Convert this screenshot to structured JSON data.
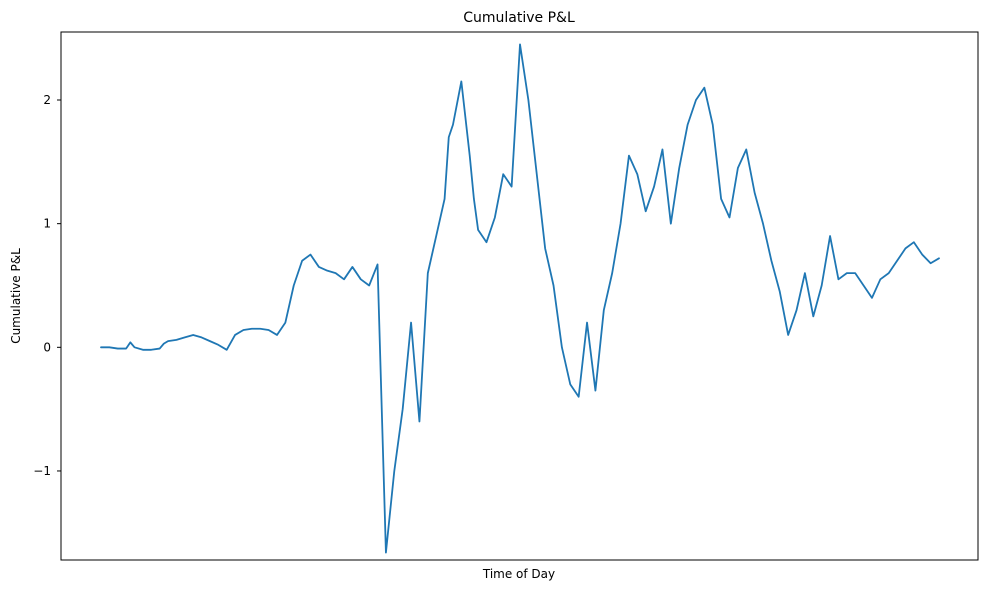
{
  "chart_data": {
    "type": "line",
    "title": "Cumulative P&L",
    "xlabel": "Time of Day",
    "ylabel": "Cumulative P&L",
    "xlim": [
      0,
      100
    ],
    "ylim": [
      -1.72,
      2.55
    ],
    "yticks": [
      -1,
      0,
      1,
      2
    ],
    "ytick_labels": [
      "−1",
      "0",
      "1",
      "2"
    ],
    "grid": false,
    "line_color": "#1f77b4",
    "series": [
      {
        "x": [
          0,
          1,
          2,
          3,
          3.5,
          4,
          5,
          6,
          7,
          7.5,
          8,
          9,
          10,
          11,
          12,
          13,
          14,
          15,
          16,
          17,
          18,
          19,
          20,
          21,
          22,
          23,
          24,
          25,
          26,
          27,
          28,
          29,
          30,
          31,
          32,
          33,
          34,
          35,
          36,
          37,
          38,
          39,
          40,
          41,
          41.5,
          42,
          43,
          44,
          44.5,
          45,
          46,
          47,
          48,
          49,
          50,
          51,
          52,
          53,
          54,
          55,
          56,
          57,
          58,
          59,
          60,
          61,
          62,
          63,
          64,
          65,
          66,
          67,
          68,
          69,
          70,
          71,
          72,
          73,
          74,
          75,
          76,
          77,
          78,
          79,
          80,
          81,
          82,
          83,
          84,
          85,
          86,
          87,
          88,
          89,
          90,
          91,
          92,
          93,
          94,
          95,
          96,
          97,
          98,
          99,
          100
        ],
        "values": [
          0.0,
          0.0,
          -0.01,
          -0.01,
          0.04,
          0.0,
          -0.02,
          -0.02,
          -0.01,
          0.03,
          0.05,
          0.06,
          0.08,
          0.1,
          0.08,
          0.05,
          0.02,
          -0.02,
          0.1,
          0.14,
          0.15,
          0.15,
          0.14,
          0.1,
          0.2,
          0.5,
          0.7,
          0.75,
          0.65,
          0.62,
          0.6,
          0.55,
          0.65,
          0.55,
          0.5,
          0.67,
          -1.66,
          -1.0,
          -0.5,
          0.2,
          -0.6,
          0.6,
          0.9,
          1.2,
          1.7,
          1.8,
          2.15,
          1.55,
          1.2,
          0.95,
          0.85,
          1.05,
          1.4,
          1.3,
          2.45,
          2.0,
          1.4,
          0.8,
          0.5,
          0.0,
          -0.3,
          -0.4,
          0.2,
          -0.35,
          0.3,
          0.6,
          1.0,
          1.55,
          1.4,
          1.1,
          1.3,
          1.6,
          1.0,
          1.45,
          1.8,
          2.0,
          2.1,
          1.8,
          1.2,
          1.05,
          1.45,
          1.6,
          1.25,
          1.0,
          0.7,
          0.45,
          0.1,
          0.3,
          0.6,
          0.25,
          0.5,
          0.9,
          0.55,
          0.6,
          0.6,
          0.5,
          0.4,
          0.55,
          0.6,
          0.7,
          0.8,
          0.85,
          0.75,
          0.68,
          0.72
        ]
      }
    ]
  }
}
